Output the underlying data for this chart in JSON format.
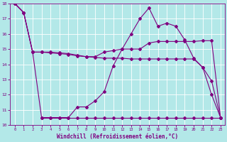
{
  "xlabel": "Windchill (Refroidissement éolien,°C)",
  "xlim": [
    -0.5,
    23.5
  ],
  "ylim": [
    10,
    18
  ],
  "yticks": [
    10,
    11,
    12,
    13,
    14,
    15,
    16,
    17,
    18
  ],
  "xticks": [
    0,
    1,
    2,
    3,
    4,
    5,
    6,
    7,
    8,
    9,
    10,
    11,
    12,
    13,
    14,
    15,
    16,
    17,
    18,
    19,
    20,
    21,
    22,
    23
  ],
  "bg_color": "#b3e8e8",
  "line_color": "#800080",
  "grid_color": "#ffffff",
  "series": [
    {
      "x": [
        0,
        1,
        2,
        3,
        4,
        5,
        6,
        7,
        8,
        9,
        10,
        11,
        12,
        13,
        14,
        15,
        16,
        17,
        18,
        19,
        20,
        21,
        22,
        23
      ],
      "y": [
        18,
        17.4,
        14.8,
        14.8,
        14.8,
        14.75,
        14.7,
        14.6,
        14.5,
        14.5,
        14.8,
        14.9,
        15.0,
        15.0,
        15.0,
        15.4,
        15.5,
        15.5,
        15.5,
        15.5,
        15.5,
        15.55,
        15.55,
        10.5
      ],
      "marker": "D",
      "markersize": 2.0,
      "linewidth": 0.8
    },
    {
      "x": [
        0,
        1,
        2,
        3,
        4,
        5,
        6,
        7,
        8,
        9,
        10,
        11,
        12,
        13,
        14,
        15,
        16,
        17,
        18,
        19,
        20,
        21,
        22,
        23
      ],
      "y": [
        18,
        17.4,
        14.8,
        14.8,
        14.75,
        14.7,
        14.65,
        14.55,
        14.5,
        14.45,
        14.4,
        14.4,
        14.4,
        14.35,
        14.35,
        14.35,
        14.35,
        14.35,
        14.35,
        14.35,
        14.35,
        13.8,
        12.9,
        10.5
      ],
      "marker": "D",
      "markersize": 2.0,
      "linewidth": 0.8
    },
    {
      "x": [
        0,
        1,
        2,
        3,
        4,
        5,
        6,
        7,
        8,
        9,
        10,
        11,
        12,
        13,
        14,
        15,
        16,
        17,
        18,
        19,
        20,
        21,
        22,
        23
      ],
      "y": [
        18,
        17.4,
        14.8,
        10.5,
        10.5,
        10.5,
        10.5,
        11.2,
        11.2,
        11.6,
        12.2,
        13.9,
        15.0,
        16.0,
        17.0,
        17.7,
        16.5,
        16.7,
        16.5,
        15.6,
        14.4,
        13.8,
        12.0,
        10.5
      ],
      "marker": "D",
      "markersize": 2.0,
      "linewidth": 0.8
    },
    {
      "x": [
        3,
        4,
        5,
        6,
        7,
        8,
        9,
        10,
        11,
        12,
        13,
        14,
        15,
        16,
        17,
        18,
        19,
        20,
        21,
        22,
        23
      ],
      "y": [
        10.5,
        10.5,
        10.5,
        10.5,
        10.5,
        10.5,
        10.5,
        10.5,
        10.5,
        10.5,
        10.5,
        10.5,
        10.5,
        10.5,
        10.5,
        10.5,
        10.5,
        10.5,
        10.5,
        10.5,
        10.5
      ],
      "marker": "D",
      "markersize": 2.0,
      "linewidth": 0.8
    }
  ]
}
